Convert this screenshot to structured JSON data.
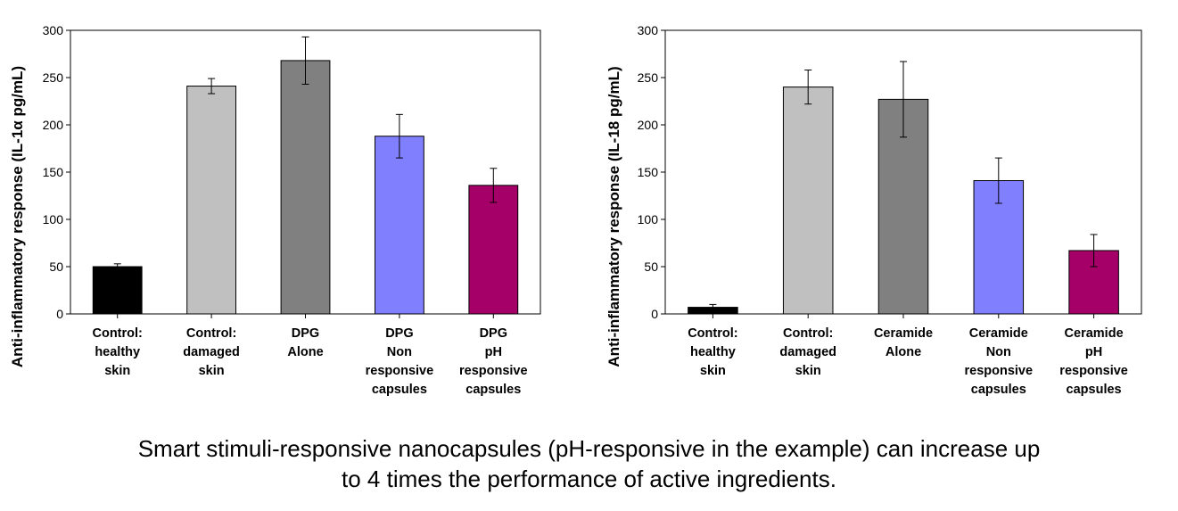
{
  "chart_data": [
    {
      "type": "bar",
      "ylabel": "Anti-inflammatory response (IL-1α pg/mL)",
      "xlabel": "",
      "ylim": [
        0,
        300
      ],
      "yticks": [
        "0",
        "50",
        "100",
        "150",
        "200",
        "250",
        "300"
      ],
      "categories": [
        [
          "Control:",
          "healthy",
          "skin"
        ],
        [
          "Control:",
          "damaged",
          "skin"
        ],
        [
          "DPG",
          "Alone"
        ],
        [
          "DPG",
          "Non",
          "responsive",
          "capsules"
        ],
        [
          "DPG",
          "pH",
          "responsive",
          "capsules"
        ]
      ],
      "values": [
        50,
        241,
        268,
        188,
        136
      ],
      "errors": [
        3,
        8,
        25,
        23,
        18
      ],
      "colors": [
        "#000000",
        "#c0c0c0",
        "#808080",
        "#8080ff",
        "#a50067"
      ]
    },
    {
      "type": "bar",
      "ylabel": "Anti-inflammatory response (IL-18 pg/mL)",
      "xlabel": "",
      "ylim": [
        0,
        300
      ],
      "yticks": [
        "0",
        "50",
        "100",
        "150",
        "200",
        "250",
        "300"
      ],
      "categories": [
        [
          "Control:",
          "healthy",
          "skin"
        ],
        [
          "Control:",
          "damaged",
          "skin"
        ],
        [
          "Ceramide",
          "Alone"
        ],
        [
          "Ceramide",
          "Non",
          "responsive",
          "capsules"
        ],
        [
          "Ceramide",
          "pH",
          "responsive",
          "capsules"
        ]
      ],
      "values": [
        7,
        240,
        227,
        141,
        67
      ],
      "errors": [
        3,
        18,
        40,
        24,
        17
      ],
      "colors": [
        "#000000",
        "#c0c0c0",
        "#808080",
        "#8080ff",
        "#a50067"
      ]
    }
  ],
  "caption": {
    "line1": "Smart stimuli-responsive nanocapsules (pH-responsive in the example) can increase up",
    "line2": "to 4 times the performance of active ingredients."
  }
}
